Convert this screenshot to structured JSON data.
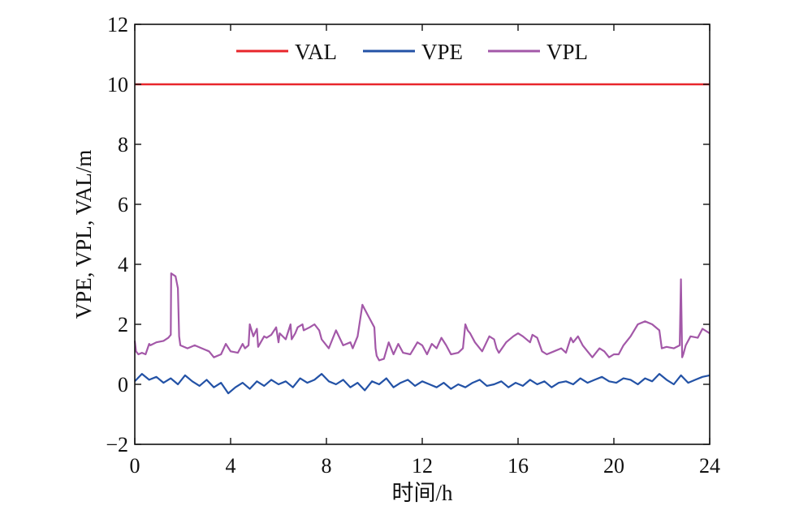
{
  "chart_data": {
    "type": "line",
    "xlabel": "时间/h",
    "ylabel": "VPE, VPL, VAL/m",
    "xlim": [
      0,
      24
    ],
    "ylim": [
      -2,
      12
    ],
    "xticks": [
      0,
      4,
      8,
      12,
      16,
      20,
      24
    ],
    "yticks": [
      -2,
      0,
      2,
      4,
      6,
      8,
      10,
      12
    ],
    "ytick_labels": [
      "−2",
      "0",
      "2",
      "4",
      "6",
      "8",
      "10",
      "12"
    ],
    "grid": false,
    "legend_position": "top",
    "series": [
      {
        "name": "VAL",
        "color": "#e8262b",
        "x": [
          0,
          24
        ],
        "y": [
          10,
          10
        ]
      },
      {
        "name": "VPE",
        "color": "#2352a6",
        "x": [
          0,
          0.3,
          0.6,
          0.9,
          1.2,
          1.5,
          1.8,
          2.1,
          2.4,
          2.7,
          3.0,
          3.3,
          3.6,
          3.9,
          4.2,
          4.5,
          4.8,
          5.1,
          5.4,
          5.7,
          6.0,
          6.3,
          6.6,
          6.9,
          7.2,
          7.5,
          7.8,
          8.1,
          8.4,
          8.7,
          9.0,
          9.3,
          9.6,
          9.9,
          10.2,
          10.5,
          10.8,
          11.1,
          11.4,
          11.7,
          12.0,
          12.3,
          12.6,
          12.9,
          13.2,
          13.5,
          13.8,
          14.1,
          14.4,
          14.7,
          15.0,
          15.3,
          15.6,
          15.9,
          16.2,
          16.5,
          16.8,
          17.1,
          17.4,
          17.7,
          18.0,
          18.3,
          18.6,
          18.9,
          19.2,
          19.5,
          19.8,
          20.1,
          20.4,
          20.7,
          21.0,
          21.3,
          21.6,
          21.9,
          22.2,
          22.5,
          22.8,
          23.1,
          23.4,
          23.7,
          24.0
        ],
        "y": [
          0.1,
          0.35,
          0.15,
          0.25,
          0.05,
          0.2,
          0.0,
          0.3,
          0.1,
          -0.05,
          0.15,
          -0.1,
          0.05,
          -0.3,
          -0.1,
          0.05,
          -0.15,
          0.1,
          -0.05,
          0.15,
          0.0,
          0.1,
          -0.1,
          0.2,
          0.05,
          0.15,
          0.35,
          0.1,
          0.0,
          0.15,
          -0.1,
          0.05,
          -0.2,
          0.1,
          0.0,
          0.2,
          -0.1,
          0.05,
          0.15,
          -0.05,
          0.1,
          0.0,
          -0.1,
          0.05,
          -0.15,
          0.0,
          -0.1,
          0.05,
          0.15,
          -0.05,
          0.0,
          0.1,
          -0.1,
          0.05,
          -0.05,
          0.15,
          0.0,
          0.1,
          -0.1,
          0.05,
          0.1,
          0.0,
          0.2,
          0.05,
          0.15,
          0.25,
          0.1,
          0.05,
          0.2,
          0.15,
          0.0,
          0.2,
          0.1,
          0.35,
          0.15,
          0.0,
          0.3,
          0.05,
          0.15,
          0.25,
          0.3
        ]
      },
      {
        "name": "VPL",
        "color": "#a358a8",
        "x": [
          0,
          0.05,
          0.15,
          0.3,
          0.45,
          0.6,
          0.65,
          0.9,
          1.2,
          1.4,
          1.5,
          1.52,
          1.7,
          1.8,
          1.85,
          1.9,
          2.2,
          2.5,
          2.8,
          3.1,
          3.3,
          3.6,
          3.8,
          4.0,
          4.3,
          4.5,
          4.6,
          4.75,
          4.8,
          4.95,
          5.1,
          5.15,
          5.4,
          5.5,
          5.7,
          5.9,
          6.0,
          6.05,
          6.3,
          6.5,
          6.55,
          6.7,
          6.8,
          7.0,
          7.05,
          7.3,
          7.5,
          7.7,
          7.8,
          8.0,
          8.1,
          8.4,
          8.7,
          9.0,
          9.1,
          9.3,
          9.5,
          9.6,
          9.8,
          10.0,
          10.05,
          10.1,
          10.2,
          10.4,
          10.6,
          10.8,
          11.0,
          11.2,
          11.5,
          11.8,
          12.0,
          12.2,
          12.4,
          12.6,
          12.8,
          13.0,
          13.2,
          13.5,
          13.7,
          13.8,
          13.9,
          14.0,
          14.2,
          14.5,
          14.8,
          15.0,
          15.1,
          15.2,
          15.5,
          15.8,
          16.0,
          16.2,
          16.5,
          16.6,
          16.8,
          17.0,
          17.2,
          17.5,
          17.8,
          18.0,
          18.2,
          18.3,
          18.5,
          18.7,
          18.9,
          19.1,
          19.4,
          19.6,
          19.8,
          20.0,
          20.2,
          20.4,
          20.7,
          21.0,
          21.3,
          21.6,
          21.9,
          22.0,
          22.2,
          22.5,
          22.75,
          22.8,
          22.85,
          22.9,
          23.0,
          23.2,
          23.5,
          23.7,
          24.0
        ],
        "y": [
          1.45,
          1.1,
          1.0,
          1.05,
          1.0,
          1.35,
          1.3,
          1.4,
          1.45,
          1.55,
          1.65,
          3.7,
          3.6,
          3.2,
          1.6,
          1.3,
          1.2,
          1.3,
          1.2,
          1.1,
          0.9,
          1.0,
          1.35,
          1.1,
          1.05,
          1.35,
          1.2,
          1.3,
          2.0,
          1.6,
          1.85,
          1.25,
          1.6,
          1.55,
          1.65,
          1.9,
          1.4,
          1.7,
          1.5,
          2.0,
          1.5,
          1.7,
          1.9,
          2.0,
          1.8,
          1.9,
          2.0,
          1.8,
          1.5,
          1.3,
          1.2,
          1.8,
          1.3,
          1.4,
          1.2,
          1.6,
          2.65,
          2.5,
          2.2,
          1.9,
          1.2,
          0.95,
          0.8,
          0.85,
          1.4,
          1.0,
          1.35,
          1.05,
          1.0,
          1.4,
          1.3,
          1.0,
          1.35,
          1.2,
          1.55,
          1.3,
          1.0,
          1.05,
          1.2,
          2.0,
          1.8,
          1.7,
          1.4,
          1.1,
          1.6,
          1.5,
          1.2,
          1.05,
          1.4,
          1.6,
          1.7,
          1.6,
          1.4,
          1.65,
          1.55,
          1.1,
          1.0,
          1.1,
          1.2,
          1.05,
          1.55,
          1.4,
          1.6,
          1.3,
          1.1,
          0.9,
          1.2,
          1.1,
          0.9,
          1.0,
          1.0,
          1.3,
          1.6,
          2.0,
          2.1,
          2.0,
          1.8,
          1.2,
          1.25,
          1.2,
          1.3,
          3.5,
          0.9,
          1.0,
          1.3,
          1.6,
          1.55,
          1.85,
          1.7
        ]
      }
    ]
  }
}
